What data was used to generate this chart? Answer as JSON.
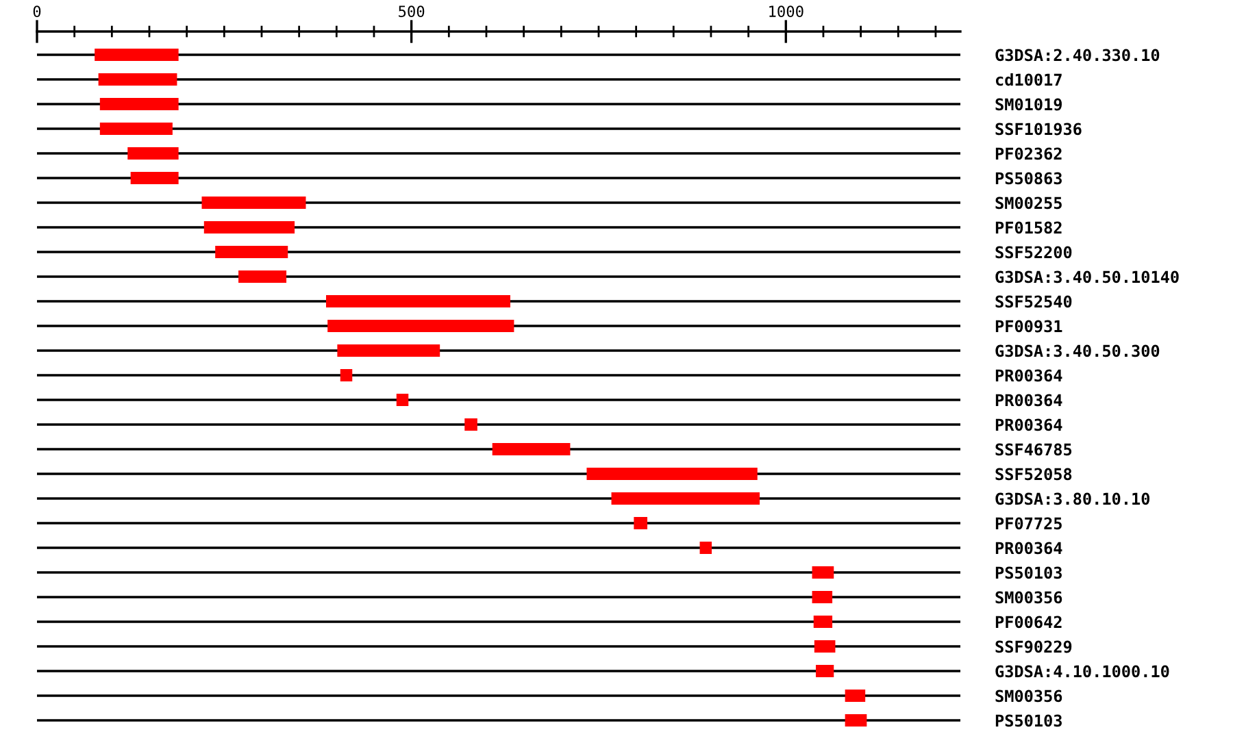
{
  "chart_data": {
    "type": "bar",
    "orientation": "horizontal",
    "color": "#ff0000",
    "grid": "y",
    "categories": [
      "G3DSA:2.40.330.10",
      "cd10017",
      "SM01019",
      "SSF101936",
      "PF02362",
      "PS50863",
      "SM00255",
      "PF01582",
      "SSF52200",
      "G3DSA:3.40.50.10140",
      "SSF52540",
      "PF00931",
      "G3DSA:3.40.50.300",
      "PR00364",
      "PR00364",
      "PR00364",
      "SSF46785",
      "SSF52058",
      "G3DSA:3.80.10.10",
      "PF07725",
      "PR00364",
      "PS50103",
      "SM00356",
      "PF00642",
      "SSF90229",
      "G3DSA:4.10.1000.10",
      "SM00356",
      "PS50103"
    ],
    "base": [
      77,
      82,
      84,
      84,
      121,
      125,
      220,
      223,
      238,
      269,
      386,
      388,
      401,
      405,
      480,
      571,
      608,
      734,
      767,
      797,
      885,
      1035,
      1035,
      1037,
      1038,
      1040,
      1079,
      1079
    ],
    "values": [
      112,
      105,
      105,
      97,
      68,
      64,
      139,
      121,
      97,
      64,
      246,
      249,
      137,
      16,
      16,
      17,
      104,
      228,
      198,
      18,
      16,
      29,
      27,
      25,
      28,
      24,
      27,
      29
    ],
    "xlim": [
      0,
      1233
    ],
    "xticks": [
      0,
      {
        "value": 50,
        "label": null
      },
      {
        "value": 100,
        "label": null
      },
      {
        "value": 150,
        "label": null
      },
      {
        "value": 200,
        "label": null
      },
      {
        "value": 250,
        "label": null
      },
      {
        "value": 300,
        "label": null
      },
      {
        "value": 350,
        "label": null
      },
      {
        "value": 400,
        "label": null
      },
      {
        "value": 450,
        "label": null
      },
      500,
      {
        "value": 550,
        "label": null
      },
      {
        "value": 600,
        "label": null
      },
      {
        "value": 650,
        "label": null
      },
      {
        "value": 700,
        "label": null
      },
      {
        "value": 750,
        "label": null
      },
      {
        "value": 800,
        "label": null
      },
      {
        "value": 850,
        "label": null
      },
      {
        "value": 900,
        "label": null
      },
      {
        "value": 950,
        "label": null
      },
      1000,
      {
        "value": 1050,
        "label": null
      },
      {
        "value": 1100,
        "label": null
      },
      {
        "value": 1150,
        "label": null
      },
      {
        "value": 1200,
        "label": null
      }
    ]
  }
}
